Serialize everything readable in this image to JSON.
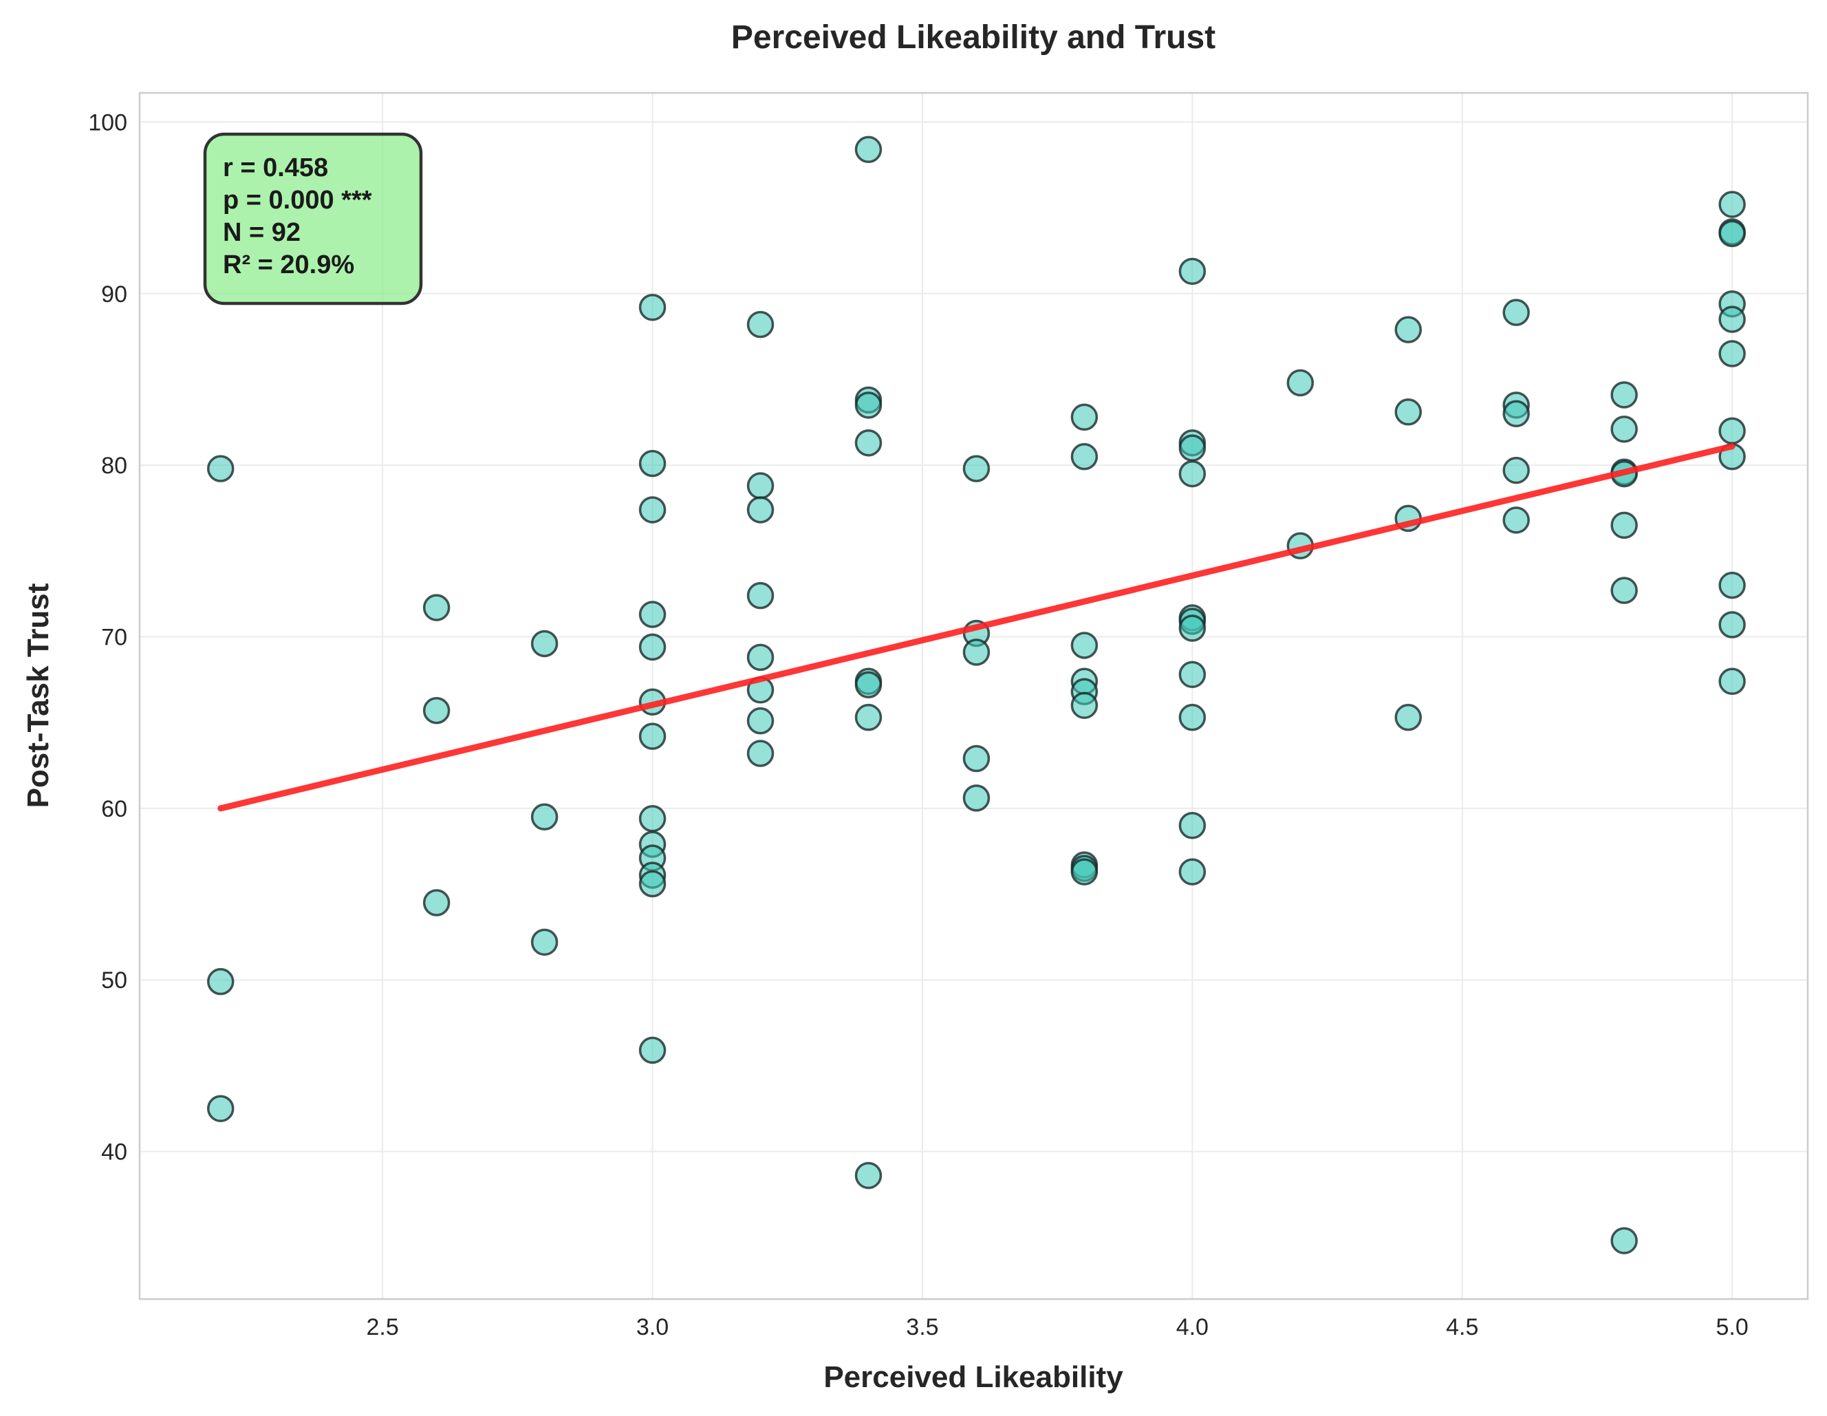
{
  "chart_data": {
    "type": "scatter",
    "title": "Perceived Likeability and Trust",
    "xlabel": "Perceived Likeability",
    "ylabel": "Post-Task Trust",
    "xlim": [
      2.05,
      5.14
    ],
    "ylim": [
      31.4,
      101.7
    ],
    "xticks": [
      2.5,
      3.0,
      3.5,
      4.0,
      4.5,
      5.0
    ],
    "xtick_labels": [
      "2.5",
      "3.0",
      "3.5",
      "4.0",
      "4.5",
      "5.0"
    ],
    "yticks": [
      40,
      50,
      60,
      70,
      80,
      90,
      100
    ],
    "ytick_labels": [
      "40",
      "50",
      "60",
      "70",
      "80",
      "90",
      "100"
    ],
    "grid": true,
    "colors": {
      "points": "#40c8b8",
      "point_edge": "#1a2a2a",
      "trend": "#ff2020",
      "stats_box": "#90ee90"
    },
    "points": [
      {
        "x": 2.2,
        "y": 79.8
      },
      {
        "x": 2.2,
        "y": 49.9
      },
      {
        "x": 2.2,
        "y": 42.5
      },
      {
        "x": 2.6,
        "y": 71.7
      },
      {
        "x": 2.6,
        "y": 65.7
      },
      {
        "x": 2.6,
        "y": 54.5
      },
      {
        "x": 2.8,
        "y": 69.6
      },
      {
        "x": 2.8,
        "y": 59.5
      },
      {
        "x": 2.8,
        "y": 52.2
      },
      {
        "x": 3.0,
        "y": 89.2
      },
      {
        "x": 3.0,
        "y": 80.1
      },
      {
        "x": 3.0,
        "y": 77.4
      },
      {
        "x": 3.0,
        "y": 71.3
      },
      {
        "x": 3.0,
        "y": 69.4
      },
      {
        "x": 3.0,
        "y": 66.2
      },
      {
        "x": 3.0,
        "y": 64.2
      },
      {
        "x": 3.0,
        "y": 59.4
      },
      {
        "x": 3.0,
        "y": 57.9
      },
      {
        "x": 3.0,
        "y": 57.1
      },
      {
        "x": 3.0,
        "y": 56.1
      },
      {
        "x": 3.0,
        "y": 55.6
      },
      {
        "x": 3.0,
        "y": 45.9
      },
      {
        "x": 3.2,
        "y": 88.2
      },
      {
        "x": 3.2,
        "y": 78.8
      },
      {
        "x": 3.2,
        "y": 77.4
      },
      {
        "x": 3.2,
        "y": 72.4
      },
      {
        "x": 3.2,
        "y": 68.8
      },
      {
        "x": 3.2,
        "y": 66.9
      },
      {
        "x": 3.2,
        "y": 65.1
      },
      {
        "x": 3.2,
        "y": 63.2
      },
      {
        "x": 3.4,
        "y": 98.4
      },
      {
        "x": 3.4,
        "y": 83.8
      },
      {
        "x": 3.4,
        "y": 83.5
      },
      {
        "x": 3.4,
        "y": 81.3
      },
      {
        "x": 3.4,
        "y": 67.4
      },
      {
        "x": 3.4,
        "y": 67.2
      },
      {
        "x": 3.4,
        "y": 65.3
      },
      {
        "x": 3.4,
        "y": 38.6
      },
      {
        "x": 3.6,
        "y": 79.8
      },
      {
        "x": 3.6,
        "y": 70.2
      },
      {
        "x": 3.6,
        "y": 69.1
      },
      {
        "x": 3.6,
        "y": 62.9
      },
      {
        "x": 3.6,
        "y": 60.6
      },
      {
        "x": 3.8,
        "y": 82.8
      },
      {
        "x": 3.8,
        "y": 80.5
      },
      {
        "x": 3.8,
        "y": 69.5
      },
      {
        "x": 3.8,
        "y": 67.4
      },
      {
        "x": 3.8,
        "y": 66.8
      },
      {
        "x": 3.8,
        "y": 66.0
      },
      {
        "x": 3.8,
        "y": 56.7
      },
      {
        "x": 3.8,
        "y": 56.5
      },
      {
        "x": 3.8,
        "y": 56.3
      },
      {
        "x": 4.0,
        "y": 91.3
      },
      {
        "x": 4.0,
        "y": 81.3
      },
      {
        "x": 4.0,
        "y": 81.0
      },
      {
        "x": 4.0,
        "y": 79.5
      },
      {
        "x": 4.0,
        "y": 71.1
      },
      {
        "x": 4.0,
        "y": 70.9
      },
      {
        "x": 4.0,
        "y": 70.5
      },
      {
        "x": 4.0,
        "y": 67.8
      },
      {
        "x": 4.0,
        "y": 65.3
      },
      {
        "x": 4.0,
        "y": 59.0
      },
      {
        "x": 4.0,
        "y": 56.3
      },
      {
        "x": 4.2,
        "y": 84.8
      },
      {
        "x": 4.2,
        "y": 75.3
      },
      {
        "x": 4.4,
        "y": 87.9
      },
      {
        "x": 4.4,
        "y": 83.1
      },
      {
        "x": 4.4,
        "y": 76.9
      },
      {
        "x": 4.4,
        "y": 65.3
      },
      {
        "x": 4.6,
        "y": 88.9
      },
      {
        "x": 4.6,
        "y": 83.5
      },
      {
        "x": 4.6,
        "y": 83.0
      },
      {
        "x": 4.6,
        "y": 79.7
      },
      {
        "x": 4.6,
        "y": 76.8
      },
      {
        "x": 4.8,
        "y": 84.1
      },
      {
        "x": 4.8,
        "y": 82.1
      },
      {
        "x": 4.8,
        "y": 79.6
      },
      {
        "x": 4.8,
        "y": 79.5
      },
      {
        "x": 4.8,
        "y": 76.5
      },
      {
        "x": 4.8,
        "y": 72.7
      },
      {
        "x": 4.8,
        "y": 34.8
      },
      {
        "x": 5.0,
        "y": 95.2
      },
      {
        "x": 5.0,
        "y": 93.6
      },
      {
        "x": 5.0,
        "y": 93.5
      },
      {
        "x": 5.0,
        "y": 89.4
      },
      {
        "x": 5.0,
        "y": 88.5
      },
      {
        "x": 5.0,
        "y": 86.5
      },
      {
        "x": 5.0,
        "y": 82.0
      },
      {
        "x": 5.0,
        "y": 80.5
      },
      {
        "x": 5.0,
        "y": 73.0
      },
      {
        "x": 5.0,
        "y": 70.7
      },
      {
        "x": 5.0,
        "y": 67.4
      }
    ],
    "trendline": {
      "x": [
        2.2,
        5.0
      ],
      "y": [
        60.0,
        81.1
      ]
    },
    "stats": {
      "r": "r = 0.458",
      "p": "p = 0.000 ***",
      "n": "N = 92",
      "r2": "R² = 20.9%"
    }
  }
}
